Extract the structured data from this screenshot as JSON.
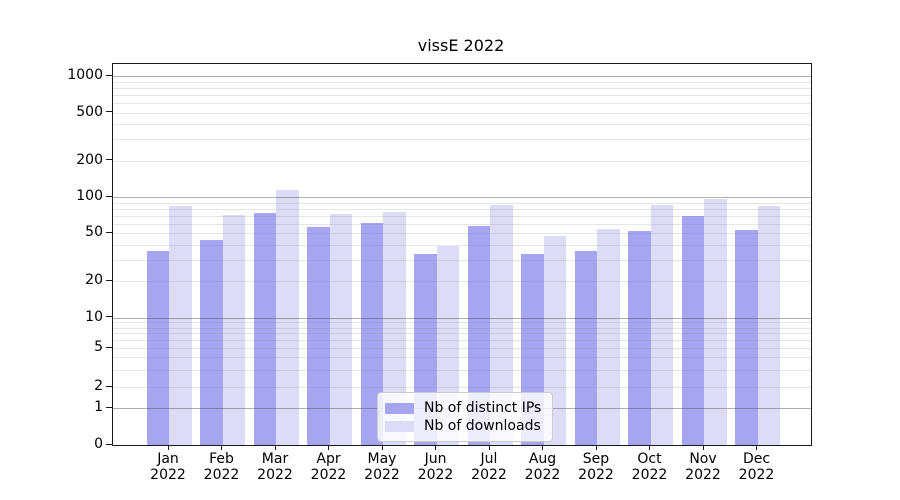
{
  "chart_data": {
    "type": "bar",
    "title": "vissE 2022",
    "categories": [
      {
        "label": "Jan 2022",
        "month": "Jan",
        "year": "2022"
      },
      {
        "label": "Feb 2022",
        "month": "Feb",
        "year": "2022"
      },
      {
        "label": "Mar 2022",
        "month": "Mar",
        "year": "2022"
      },
      {
        "label": "Apr 2022",
        "month": "Apr",
        "year": "2022"
      },
      {
        "label": "May 2022",
        "month": "May",
        "year": "2022"
      },
      {
        "label": "Jun 2022",
        "month": "Jun",
        "year": "2022"
      },
      {
        "label": "Jul 2022",
        "month": "Jul",
        "year": "2022"
      },
      {
        "label": "Aug 2022",
        "month": "Aug",
        "year": "2022"
      },
      {
        "label": "Sep 2022",
        "month": "Sep",
        "year": "2022"
      },
      {
        "label": "Oct 2022",
        "month": "Oct",
        "year": "2022"
      },
      {
        "label": "Nov 2022",
        "month": "Nov",
        "year": "2022"
      },
      {
        "label": "Dec 2022",
        "month": "Dec",
        "year": "2022"
      }
    ],
    "series": [
      {
        "id": "distinct-ips",
        "name": "Nb of distinct IPs",
        "color": "#a5a5f1",
        "values": [
          36,
          44,
          74,
          56,
          61,
          34,
          57,
          34,
          36,
          52,
          69,
          53
        ]
      },
      {
        "id": "downloads",
        "name": "Nb of downloads",
        "color": "#dcdcf7",
        "values": [
          85,
          71,
          114,
          73,
          75,
          39,
          86,
          48,
          54,
          86,
          97,
          85
        ]
      }
    ],
    "xlabel": "",
    "ylabel": "",
    "yticks": [
      0,
      1,
      2,
      5,
      10,
      20,
      50,
      100,
      200,
      500,
      1000
    ],
    "ylim": [
      0,
      1000
    ],
    "yscale": "symlog",
    "grid": "on",
    "legend_position": "lower center"
  },
  "colors": {
    "background": "#ffffff",
    "text": "#000000",
    "axis": "#1a1a1a",
    "grid_major": "#afafaf",
    "grid_minor": "#e6e6e6",
    "legend_border": "#cccccc",
    "legend_background": "#ffffff"
  }
}
